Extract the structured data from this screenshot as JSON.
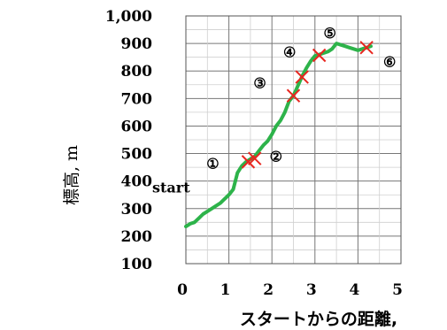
{
  "chart_data": {
    "type": "line",
    "title": "",
    "xlabel": "スタートからの距離,",
    "ylabel": "標高, m",
    "xlim": [
      0,
      5
    ],
    "ylim": [
      100,
      1000
    ],
    "x_ticks": [
      "0",
      "1",
      "2",
      "3",
      "4",
      "5"
    ],
    "y_ticks": [
      "100",
      "200",
      "300",
      "400",
      "500",
      "600",
      "700",
      "800",
      "900",
      "1,000"
    ],
    "x_tick_values": [
      0,
      1,
      2,
      3,
      4,
      5
    ],
    "y_tick_values": [
      100,
      200,
      300,
      400,
      500,
      600,
      700,
      800,
      900,
      1000
    ],
    "grid": true,
    "line_color": "#2db34a",
    "marker_color": "#e8261f",
    "series": [
      {
        "x": [
          0,
          0.1,
          0.2,
          0.3,
          0.4,
          0.5,
          0.6,
          0.7,
          0.8,
          0.9,
          1.0,
          1.1,
          1.2,
          1.3,
          1.4,
          1.5,
          1.6,
          1.7,
          1.8,
          1.9,
          2.0,
          2.1,
          2.2,
          2.3,
          2.4,
          2.5,
          2.6,
          2.7,
          2.8,
          2.9,
          3.0,
          3.1,
          3.2,
          3.3,
          3.4,
          3.5,
          3.6,
          3.7,
          3.8,
          3.9,
          4.0,
          4.1,
          4.2,
          4.3
        ],
        "y": [
          235,
          245,
          250,
          265,
          280,
          290,
          300,
          310,
          320,
          335,
          350,
          370,
          430,
          455,
          470,
          480,
          490,
          510,
          530,
          545,
          570,
          600,
          620,
          650,
          690,
          710,
          745,
          780,
          810,
          835,
          855,
          860,
          865,
          870,
          880,
          900,
          895,
          890,
          885,
          880,
          875,
          880,
          885,
          890
        ]
      }
    ],
    "markers": [
      {
        "label": "①",
        "x": 1.45,
        "y": 470
      },
      {
        "label": "②",
        "x": 1.6,
        "y": 482
      },
      {
        "label": "③",
        "x": 2.5,
        "y": 710
      },
      {
        "label": "④",
        "x": 2.7,
        "y": 778
      },
      {
        "label": "⑤",
        "x": 3.1,
        "y": 857
      },
      {
        "label": "⑥",
        "x": 4.2,
        "y": 885
      }
    ],
    "annotations": [
      {
        "text": "start",
        "x": 0.1,
        "y": 400
      }
    ]
  }
}
